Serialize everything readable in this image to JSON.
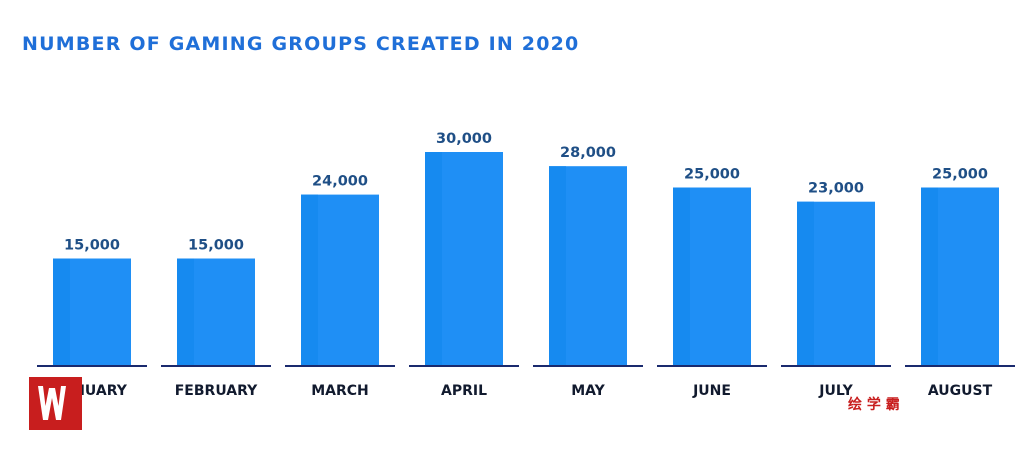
{
  "chart_data": {
    "type": "bar",
    "title": "NUMBER OF GAMING GROUPS CREATED IN 2020",
    "categories": [
      "JANUARY",
      "FEBRUARY",
      "MARCH",
      "APRIL",
      "MAY",
      "JUNE",
      "JULY",
      "AUGUST"
    ],
    "values": [
      15000,
      15000,
      24000,
      30000,
      28000,
      25000,
      23000,
      25000
    ],
    "value_labels": [
      "15,000",
      "15,000",
      "24,000",
      "30,000",
      "28,000",
      "25,000",
      "23,000",
      "25,000"
    ],
    "xlabel": "",
    "ylabel": "",
    "ylim": [
      0,
      30000
    ],
    "grid": false,
    "legend": "none"
  },
  "watermark": {
    "text": "绘 学 霸"
  },
  "colors": {
    "title": "#1f6fd8",
    "bar": "#1f8ff5",
    "bar_shade": "#168af0",
    "value_label": "#1f4f86",
    "category_label": "#111a2e",
    "baseline": "#1a2a6e",
    "watermark_box": "#c81e1e",
    "watermark_text": "#c81e1e"
  }
}
